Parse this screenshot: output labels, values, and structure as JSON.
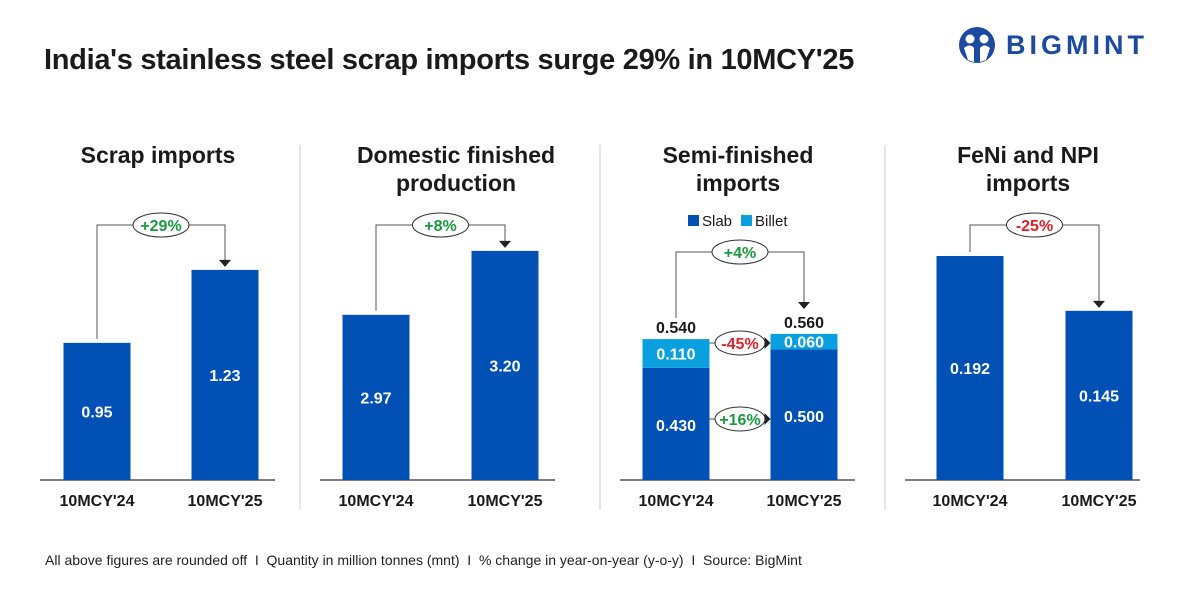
{
  "title": "India's stainless steel scrap imports surge 29% in 10MCY'25",
  "logo": {
    "text": "BIGMINT",
    "color": "#1c4aa0"
  },
  "footer": "All above figures are rounded off  I  Quantity in million tonnes (mnt)  I  % change in year-on-year (y-o-y)  I  Source: BigMint",
  "colors": {
    "bar": "#0050b5",
    "billet": "#0aa0e0",
    "positive": "#1a9a3e",
    "negative": "#e0202a"
  },
  "chart_data": [
    {
      "type": "bar",
      "title": [
        "Scrap imports"
      ],
      "categories": [
        "10MCY'24",
        "10MCY'25"
      ],
      "values": [
        0.95,
        1.23
      ],
      "labels": [
        "0.95",
        "1.23"
      ],
      "change": "+29%",
      "change_sign": "positive",
      "ylim": [
        0.424,
        1.498
      ]
    },
    {
      "type": "bar",
      "title": [
        "Domestic finished",
        "production"
      ],
      "categories": [
        "10MCY'24",
        "10MCY'25"
      ],
      "values": [
        2.97,
        3.2
      ],
      "labels": [
        "2.97",
        "3.20"
      ],
      "change": "+8%",
      "change_sign": "positive",
      "ylim": [
        2.376,
        3.383
      ]
    },
    {
      "type": "bar",
      "stacked": true,
      "title": [
        "Semi-finished",
        "imports"
      ],
      "categories": [
        "10MCY'24",
        "10MCY'25"
      ],
      "legend": [
        "Slab",
        "Billet"
      ],
      "series": [
        {
          "name": "Slab",
          "values": [
            0.43,
            0.5
          ],
          "labels": [
            "0.430",
            "0.500"
          ],
          "change": "+16%",
          "change_sign": "positive"
        },
        {
          "name": "Billet",
          "values": [
            0.11,
            0.06
          ],
          "labels": [
            "0.110",
            "0.060"
          ],
          "change": "-45%",
          "change_sign": "negative"
        }
      ],
      "totals": [
        "0.540",
        "0.560"
      ],
      "change": "+4%",
      "change_sign": "positive",
      "ylim": [
        0,
        1.073
      ]
    },
    {
      "type": "bar",
      "title": [
        "FeNi and NPI",
        "imports"
      ],
      "categories": [
        "10MCY'24",
        "10MCY'25"
      ],
      "values": [
        0.192,
        0.145
      ],
      "labels": [
        "0.192",
        "0.145"
      ],
      "change": "-25%",
      "change_sign": "negative",
      "ylim": [
        0,
        0.24
      ]
    }
  ]
}
